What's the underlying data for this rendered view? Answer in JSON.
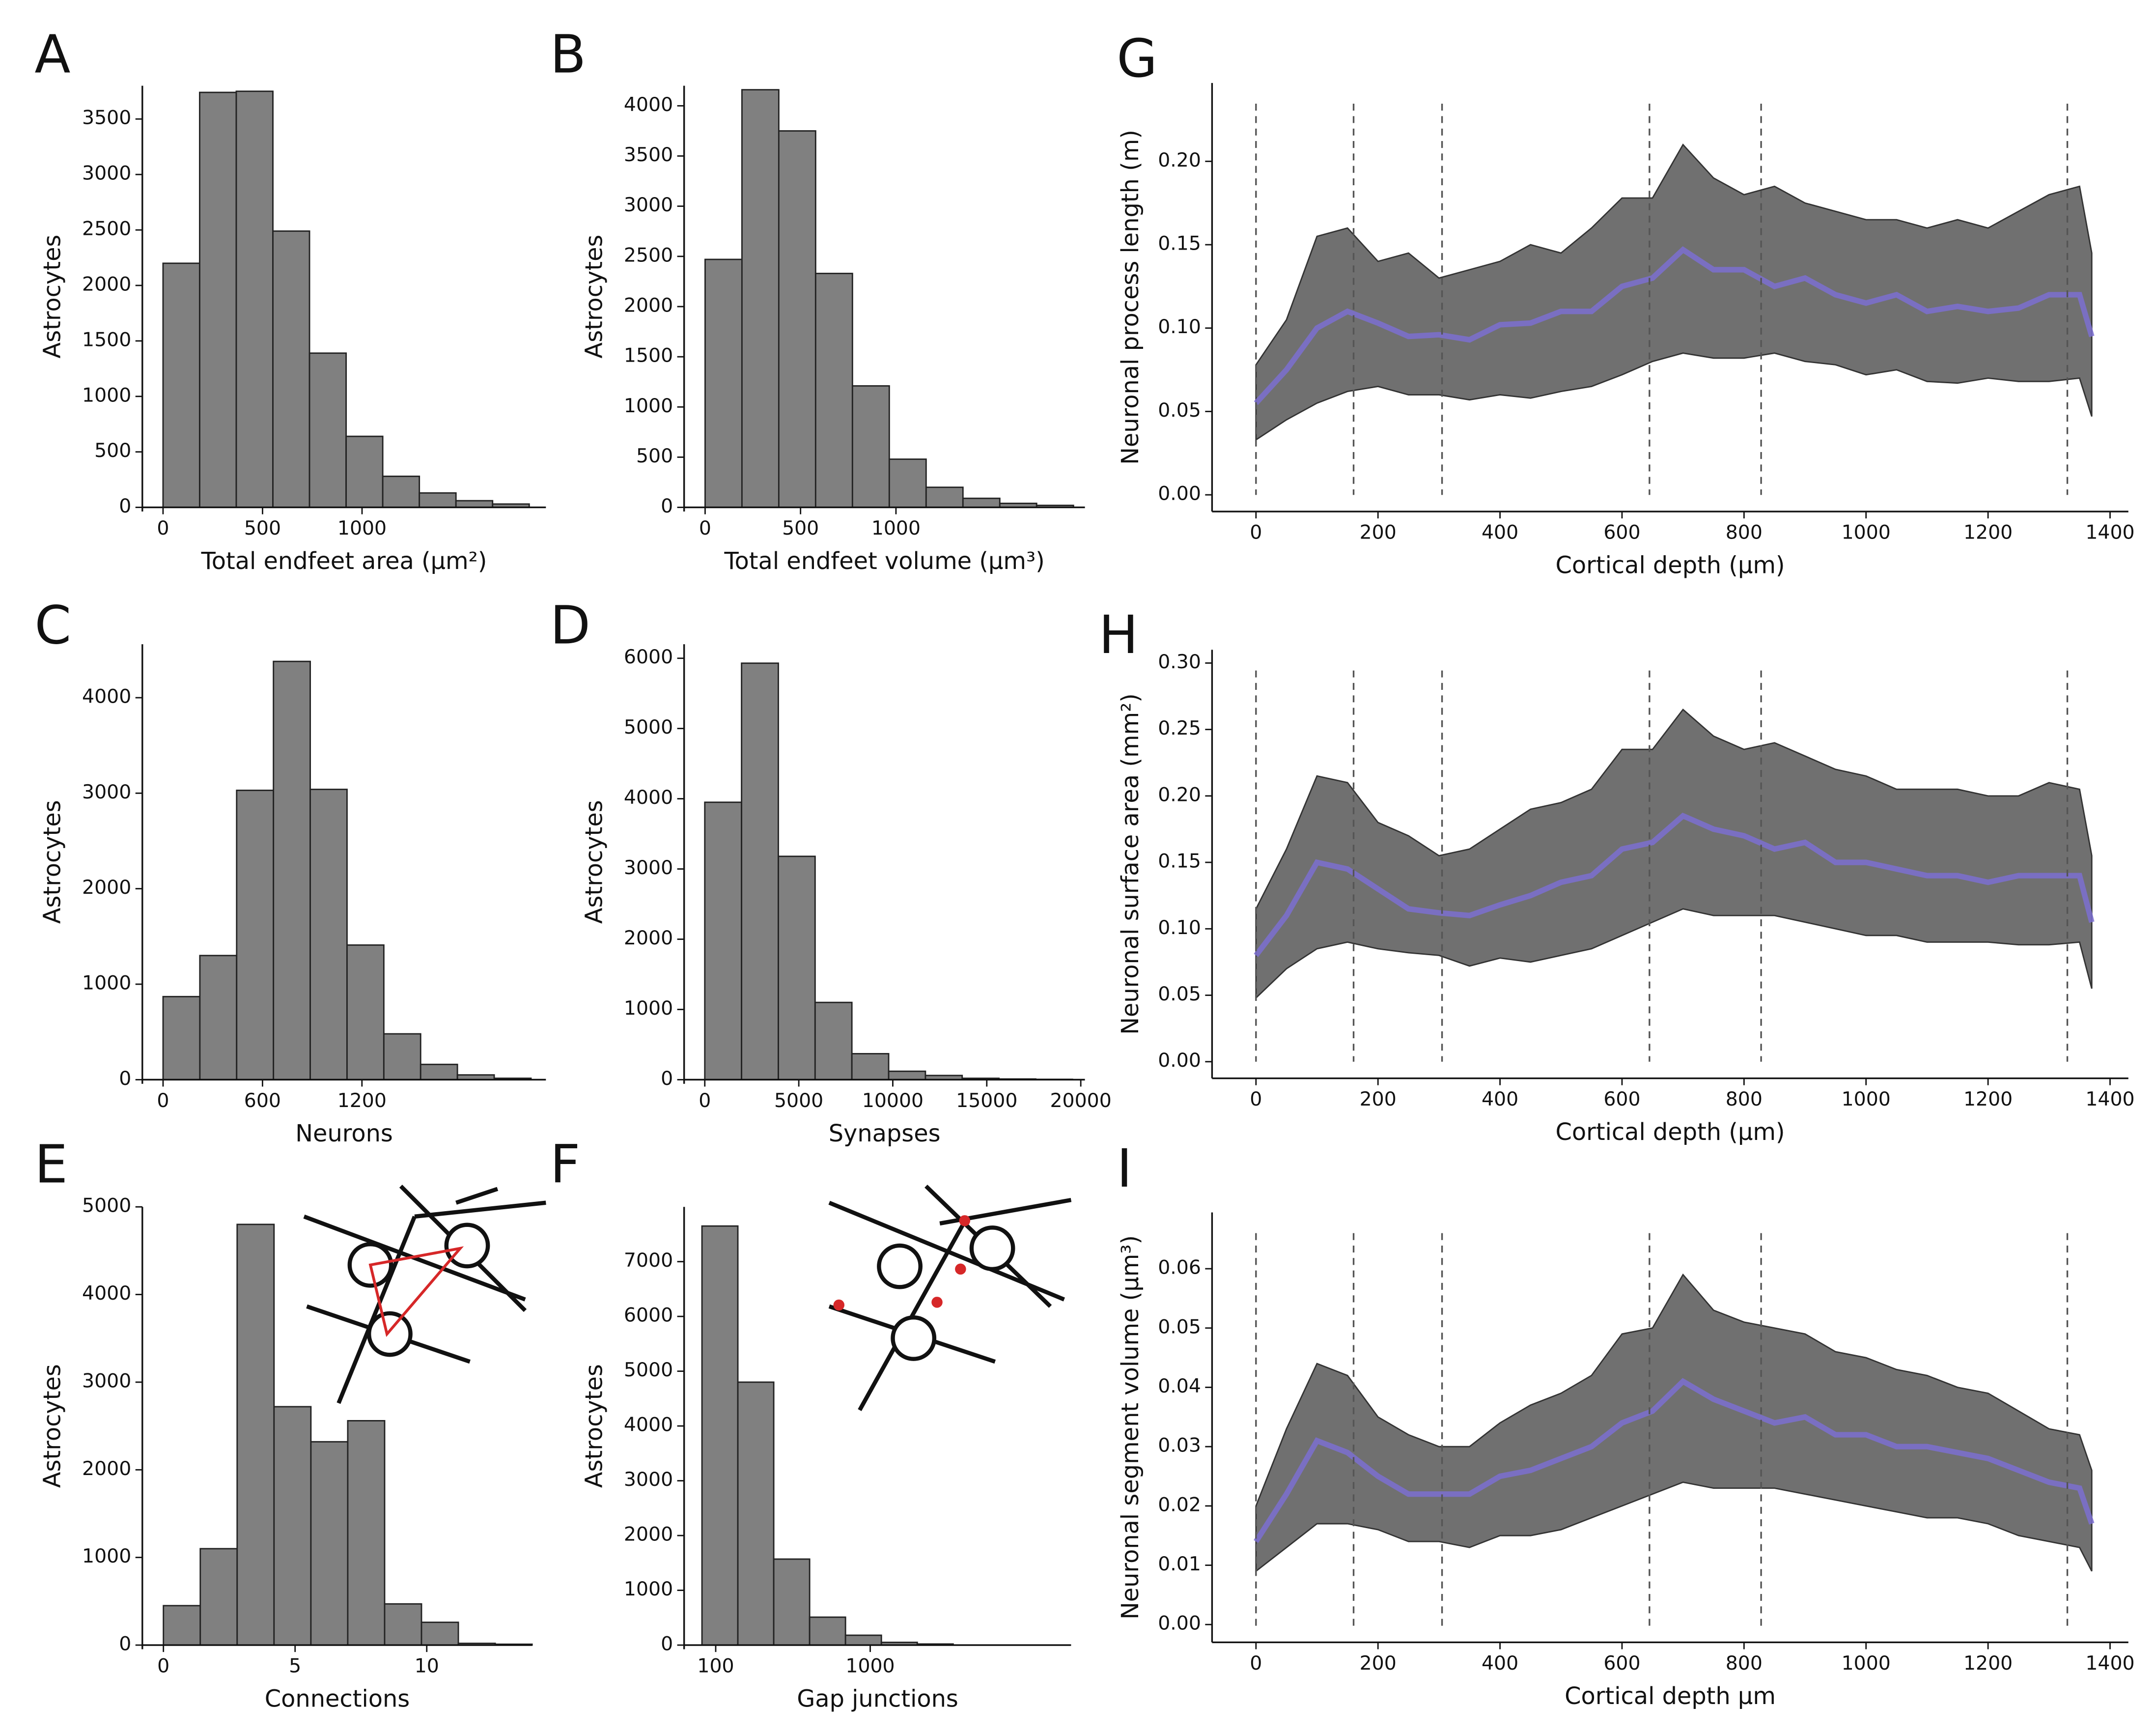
{
  "chart_data": [
    {
      "type": "histogram",
      "label": "A",
      "xlabel": "Total endfeet area (μm²)",
      "ylabel": "Astrocytes",
      "bins": [
        0,
        184,
        368,
        552,
        736,
        920,
        1104,
        1288,
        1472,
        1656,
        1840
      ],
      "values": [
        2200,
        3740,
        3750,
        2490,
        1390,
        640,
        280,
        130,
        60,
        30
      ],
      "xlim": [
        -104,
        1924
      ],
      "ylim": [
        0,
        3800
      ],
      "xticks": [
        0,
        500,
        1000
      ],
      "yticks": [
        0,
        500,
        1000,
        1500,
        2000,
        2500,
        3000,
        3500
      ],
      "color": "#808080"
    },
    {
      "type": "histogram",
      "label": "B",
      "xlabel": "Total endfeet volume (μm³)",
      "ylabel": "Astrocytes",
      "bins": [
        0,
        193,
        386,
        579,
        772,
        965,
        1158,
        1351,
        1544,
        1737,
        1930
      ],
      "values": [
        2470,
        4160,
        3750,
        2330,
        1210,
        480,
        200,
        90,
        40,
        20
      ],
      "xlim": [
        -110,
        1990
      ],
      "ylim": [
        0,
        4200
      ],
      "xticks": [
        0,
        500,
        1000
      ],
      "yticks": [
        0,
        500,
        1000,
        1500,
        2000,
        2500,
        3000,
        3500,
        4000
      ],
      "color": "#808080"
    },
    {
      "type": "histogram",
      "label": "C",
      "xlabel": "Neurons",
      "ylabel": "Astrocytes",
      "bins": [
        0,
        222,
        444,
        666,
        888,
        1110,
        1332,
        1554,
        1776,
        1998,
        2220
      ],
      "values": [
        870,
        1300,
        3030,
        4380,
        3040,
        1410,
        480,
        160,
        50,
        15
      ],
      "xlim": [
        -125,
        2310
      ],
      "ylim": [
        0,
        4560
      ],
      "xticks": [
        0,
        600,
        1200
      ],
      "yticks": [
        0,
        1000,
        2000,
        3000,
        4000
      ],
      "color": "#808080"
    },
    {
      "type": "histogram",
      "label": "D",
      "xlabel": "Synapses",
      "ylabel": "Astrocytes",
      "bins": [
        0,
        1956,
        3912,
        5868,
        7824,
        9780,
        11736,
        13692,
        15648,
        17604,
        19560
      ],
      "values": [
        3950,
        5930,
        3180,
        1100,
        370,
        120,
        60,
        20,
        10,
        5
      ],
      "xlim": [
        -1100,
        20220
      ],
      "ylim": [
        0,
        6200
      ],
      "xticks": [
        0,
        5000,
        10000,
        15000,
        20000
      ],
      "yticks": [
        0,
        1000,
        2000,
        3000,
        4000,
        5000,
        6000
      ],
      "color": "#808080"
    },
    {
      "type": "histogram",
      "label": "E",
      "xlabel": "Connections",
      "ylabel": "Astrocytes",
      "bins": [
        0,
        1.4,
        2.8,
        4.2,
        5.6,
        7,
        8.4,
        9.8,
        11.2,
        12.6,
        14
      ],
      "values": [
        450,
        1100,
        4800,
        2720,
        2320,
        2560,
        470,
        260,
        20,
        10
      ],
      "xlim": [
        -0.8,
        14
      ],
      "ylim": [
        0,
        5000
      ],
      "xticks": [
        0,
        5,
        10
      ],
      "yticks": [
        0,
        1000,
        2000,
        3000,
        4000,
        5000
      ],
      "color": "#808080"
    },
    {
      "type": "histogram",
      "label": "F",
      "xlabel": "Gap junctions",
      "ylabel": "Astrocytes",
      "bins": [
        20,
        229,
        438,
        647,
        856,
        1065,
        1274,
        1483
      ],
      "values": [
        7650,
        4800,
        1570,
        510,
        180,
        50,
        20
      ],
      "xlim": [
        -84,
        2170
      ],
      "ylim": [
        0,
        8000
      ],
      "xticks": [
        100,
        1000
      ],
      "yticks": [
        0,
        1000,
        2000,
        3000,
        4000,
        5000,
        6000,
        7000
      ],
      "color": "#808080"
    },
    {
      "type": "line",
      "label": "G",
      "xlabel": "Cortical depth (μm)",
      "ylabel": "Neuronal process length (m)",
      "x": [
        0,
        50,
        100,
        150,
        200,
        250,
        300,
        350,
        400,
        450,
        500,
        550,
        600,
        650,
        700,
        750,
        800,
        850,
        900,
        950,
        1000,
        1050,
        1100,
        1150,
        1200,
        1250,
        1300,
        1350,
        1370
      ],
      "values": [
        0.055,
        0.075,
        0.1,
        0.11,
        0.103,
        0.095,
        0.096,
        0.093,
        0.102,
        0.103,
        0.11,
        0.11,
        0.125,
        0.13,
        0.147,
        0.135,
        0.135,
        0.125,
        0.13,
        0.12,
        0.115,
        0.12,
        0.11,
        0.113,
        0.11,
        0.112,
        0.12,
        0.12,
        0.095
      ],
      "upper": [
        0.078,
        0.105,
        0.155,
        0.16,
        0.14,
        0.145,
        0.13,
        0.135,
        0.14,
        0.15,
        0.145,
        0.16,
        0.178,
        0.178,
        0.21,
        0.19,
        0.18,
        0.185,
        0.175,
        0.17,
        0.165,
        0.165,
        0.16,
        0.165,
        0.16,
        0.17,
        0.18,
        0.185,
        0.145
      ],
      "lower": [
        0.033,
        0.045,
        0.055,
        0.062,
        0.065,
        0.06,
        0.06,
        0.057,
        0.06,
        0.058,
        0.062,
        0.065,
        0.072,
        0.08,
        0.085,
        0.082,
        0.082,
        0.085,
        0.08,
        0.078,
        0.072,
        0.075,
        0.068,
        0.067,
        0.07,
        0.068,
        0.068,
        0.07,
        0.047
      ],
      "vlines": [
        0,
        160,
        305,
        645,
        828,
        1330
      ],
      "xlim": [
        -72,
        1430
      ],
      "ylim": [
        -0.01,
        0.247
      ],
      "xticks": [
        0,
        200,
        400,
        600,
        800,
        1000,
        1200,
        1400
      ],
      "yticks": [
        {
          "value": 0,
          "label": "0.00"
        },
        {
          "value": 0.05,
          "label": "0.05"
        },
        {
          "value": 0.1,
          "label": "0.10"
        },
        {
          "value": 0.15,
          "label": "0.15"
        },
        {
          "value": 0.2,
          "label": "0.20"
        }
      ],
      "color": "#7b6fd0",
      "band_color": "#707070"
    },
    {
      "type": "line",
      "label": "H",
      "xlabel": "Cortical depth (μm)",
      "ylabel": "Neuronal surface area (mm²)",
      "x": [
        0,
        50,
        100,
        150,
        200,
        250,
        300,
        350,
        400,
        450,
        500,
        550,
        600,
        650,
        700,
        750,
        800,
        850,
        900,
        950,
        1000,
        1050,
        1100,
        1150,
        1200,
        1250,
        1300,
        1350,
        1370
      ],
      "values": [
        0.08,
        0.11,
        0.15,
        0.145,
        0.13,
        0.115,
        0.112,
        0.11,
        0.118,
        0.125,
        0.135,
        0.14,
        0.16,
        0.165,
        0.185,
        0.175,
        0.17,
        0.16,
        0.165,
        0.15,
        0.15,
        0.145,
        0.14,
        0.14,
        0.135,
        0.14,
        0.14,
        0.14,
        0.105
      ],
      "upper": [
        0.115,
        0.16,
        0.215,
        0.21,
        0.18,
        0.17,
        0.155,
        0.16,
        0.175,
        0.19,
        0.195,
        0.205,
        0.235,
        0.235,
        0.265,
        0.245,
        0.235,
        0.24,
        0.23,
        0.22,
        0.215,
        0.205,
        0.205,
        0.205,
        0.2,
        0.2,
        0.21,
        0.205,
        0.155
      ],
      "lower": [
        0.048,
        0.07,
        0.085,
        0.09,
        0.085,
        0.082,
        0.08,
        0.072,
        0.078,
        0.075,
        0.08,
        0.085,
        0.095,
        0.105,
        0.115,
        0.11,
        0.11,
        0.11,
        0.105,
        0.1,
        0.095,
        0.095,
        0.09,
        0.09,
        0.09,
        0.088,
        0.088,
        0.09,
        0.055
      ],
      "vlines": [
        0,
        160,
        305,
        645,
        828,
        1330
      ],
      "xlim": [
        -72,
        1430
      ],
      "ylim": [
        -0.0125,
        0.31
      ],
      "xticks": [
        0,
        200,
        400,
        600,
        800,
        1000,
        1200,
        1400
      ],
      "yticks": [
        {
          "value": 0,
          "label": "0.00"
        },
        {
          "value": 0.05,
          "label": "0.05"
        },
        {
          "value": 0.1,
          "label": "0.10"
        },
        {
          "value": 0.15,
          "label": "0.15"
        },
        {
          "value": 0.2,
          "label": "0.20"
        },
        {
          "value": 0.25,
          "label": "0.25"
        },
        {
          "value": 0.3,
          "label": "0.30"
        }
      ],
      "color": "#7b6fd0",
      "band_color": "#707070"
    },
    {
      "type": "line",
      "label": "I",
      "xlabel": "Cortical depth μm",
      "ylabel": "Neuronal segment volume (μm³)",
      "x": [
        0,
        50,
        100,
        150,
        200,
        250,
        300,
        350,
        400,
        450,
        500,
        550,
        600,
        650,
        700,
        750,
        800,
        850,
        900,
        950,
        1000,
        1050,
        1100,
        1150,
        1200,
        1250,
        1300,
        1350,
        1370
      ],
      "values": [
        0.014,
        0.022,
        0.031,
        0.029,
        0.025,
        0.022,
        0.022,
        0.022,
        0.025,
        0.026,
        0.028,
        0.03,
        0.034,
        0.036,
        0.041,
        0.038,
        0.036,
        0.034,
        0.035,
        0.032,
        0.032,
        0.03,
        0.03,
        0.029,
        0.028,
        0.026,
        0.024,
        0.023,
        0.017
      ],
      "upper": [
        0.02,
        0.033,
        0.044,
        0.042,
        0.035,
        0.032,
        0.03,
        0.03,
        0.034,
        0.037,
        0.039,
        0.042,
        0.049,
        0.05,
        0.059,
        0.053,
        0.051,
        0.05,
        0.049,
        0.046,
        0.045,
        0.043,
        0.042,
        0.04,
        0.039,
        0.036,
        0.033,
        0.032,
        0.026
      ],
      "lower": [
        0.009,
        0.013,
        0.017,
        0.017,
        0.016,
        0.014,
        0.014,
        0.013,
        0.015,
        0.015,
        0.016,
        0.018,
        0.02,
        0.022,
        0.024,
        0.023,
        0.023,
        0.023,
        0.022,
        0.021,
        0.02,
        0.019,
        0.018,
        0.018,
        0.017,
        0.015,
        0.014,
        0.013,
        0.009
      ],
      "vlines": [
        0,
        160,
        305,
        645,
        828,
        1330
      ],
      "xlim": [
        -72,
        1430
      ],
      "ylim": [
        -0.003,
        0.0695
      ],
      "xticks": [
        0,
        200,
        400,
        600,
        800,
        1000,
        1200,
        1400
      ],
      "yticks": [
        {
          "value": 0,
          "label": "0.00"
        },
        {
          "value": 0.01,
          "label": "0.01"
        },
        {
          "value": 0.02,
          "label": "0.02"
        },
        {
          "value": 0.03,
          "label": "0.03"
        },
        {
          "value": 0.04,
          "label": "0.04"
        },
        {
          "value": 0.05,
          "label": "0.05"
        },
        {
          "value": 0.06,
          "label": "0.06"
        }
      ],
      "color": "#7b6fd0",
      "band_color": "#707070"
    }
  ]
}
